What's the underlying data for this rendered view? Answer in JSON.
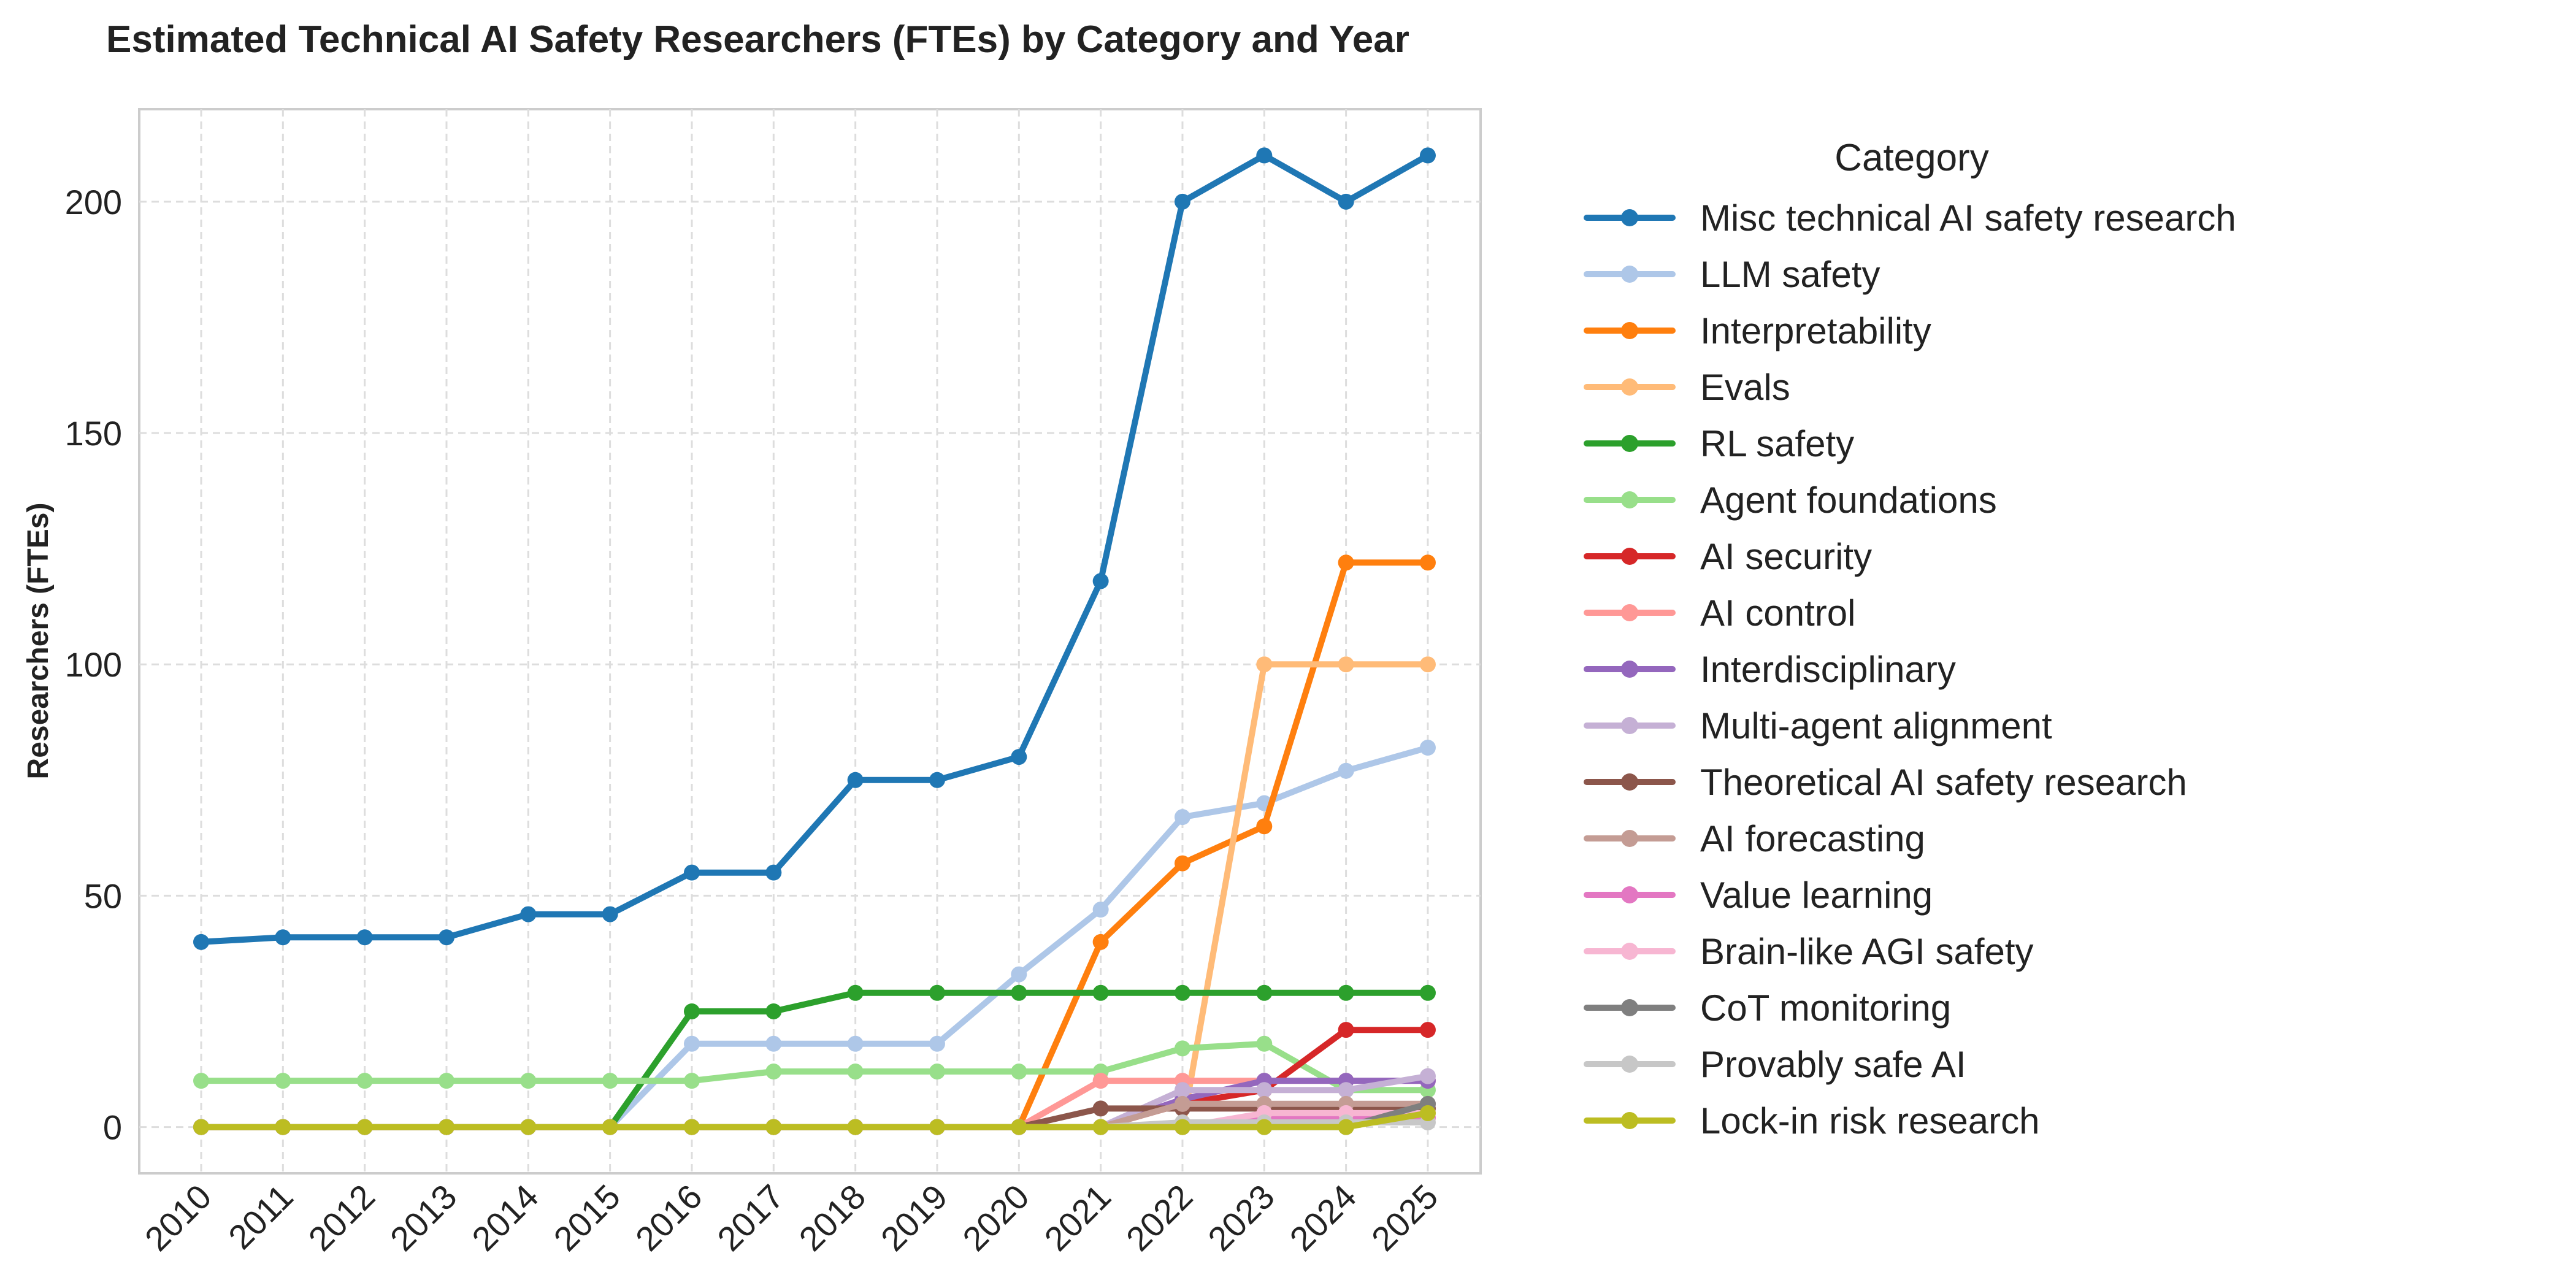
{
  "chart_data": {
    "type": "line",
    "title": "Estimated Technical AI Safety Researchers (FTEs) by Category and Year",
    "xlabel": "",
    "ylabel": "Researchers (FTEs)",
    "ylim": [
      -10,
      220
    ],
    "yticks": [
      0,
      50,
      100,
      150,
      200
    ],
    "grid": true,
    "legend_title": "Category",
    "legend_position": "outside-right",
    "x": [
      2010,
      2011,
      2012,
      2013,
      2014,
      2015,
      2016,
      2017,
      2018,
      2019,
      2020,
      2021,
      2022,
      2023,
      2024,
      2025
    ],
    "x_tick_labels": [
      "2010",
      "2011",
      "2012",
      "2013",
      "2014",
      "2015",
      "2016",
      "2017",
      "2018",
      "2019",
      "2020",
      "2021",
      "2022",
      "2023",
      "2024",
      "2025"
    ],
    "series": [
      {
        "name": "Misc technical AI safety research",
        "color": "#1f77b4",
        "values": [
          40,
          41,
          41,
          41,
          46,
          46,
          55,
          55,
          75,
          75,
          80,
          118,
          200,
          210,
          200,
          210
        ]
      },
      {
        "name": "LLM safety",
        "color": "#aec7e8",
        "values": [
          0,
          0,
          0,
          0,
          0,
          0,
          18,
          18,
          18,
          18,
          33,
          47,
          67,
          70,
          77,
          82
        ]
      },
      {
        "name": "Interpretability",
        "color": "#ff7f0e",
        "values": [
          0,
          0,
          0,
          0,
          0,
          0,
          0,
          0,
          0,
          0,
          0,
          40,
          57,
          65,
          122,
          122
        ]
      },
      {
        "name": "Evals",
        "color": "#ffbb78",
        "values": [
          0,
          0,
          0,
          0,
          0,
          0,
          0,
          0,
          0,
          0,
          0,
          0,
          0,
          100,
          100,
          100
        ]
      },
      {
        "name": "RL safety",
        "color": "#2ca02c",
        "values": [
          0,
          0,
          0,
          0,
          0,
          0,
          25,
          25,
          29,
          29,
          29,
          29,
          29,
          29,
          29,
          29
        ]
      },
      {
        "name": "Agent foundations",
        "color": "#98df8a",
        "values": [
          10,
          10,
          10,
          10,
          10,
          10,
          10,
          12,
          12,
          12,
          12,
          12,
          17,
          18,
          8,
          8
        ]
      },
      {
        "name": "AI security",
        "color": "#d62728",
        "values": [
          0,
          0,
          0,
          0,
          0,
          0,
          0,
          0,
          0,
          0,
          0,
          0,
          5,
          8,
          21,
          21
        ]
      },
      {
        "name": "AI control",
        "color": "#ff9896",
        "values": [
          0,
          0,
          0,
          0,
          0,
          0,
          0,
          0,
          0,
          0,
          0,
          10,
          10,
          10,
          10,
          10
        ]
      },
      {
        "name": "Interdisciplinary",
        "color": "#9467bd",
        "values": [
          0,
          0,
          0,
          0,
          0,
          0,
          0,
          0,
          0,
          0,
          0,
          0,
          6,
          10,
          10,
          10
        ]
      },
      {
        "name": "Multi-agent alignment",
        "color": "#c5b0d5",
        "values": [
          0,
          0,
          0,
          0,
          0,
          0,
          0,
          0,
          0,
          0,
          0,
          0,
          8,
          8,
          8,
          11
        ]
      },
      {
        "name": "Theoretical AI safety research",
        "color": "#8c564b",
        "values": [
          0,
          0,
          0,
          0,
          0,
          0,
          0,
          0,
          0,
          0,
          0,
          4,
          4,
          4,
          4,
          4
        ]
      },
      {
        "name": "AI forecasting",
        "color": "#c49c94",
        "values": [
          0,
          0,
          0,
          0,
          0,
          0,
          0,
          0,
          0,
          0,
          0,
          0,
          5,
          5,
          5,
          5
        ]
      },
      {
        "name": "Value learning",
        "color": "#e377c2",
        "values": [
          0,
          0,
          0,
          0,
          0,
          0,
          0,
          0,
          0,
          0,
          0,
          0,
          0,
          2,
          2,
          2
        ]
      },
      {
        "name": "Brain-like AGI safety",
        "color": "#f7b6d2",
        "values": [
          0,
          0,
          0,
          0,
          0,
          0,
          0,
          0,
          0,
          0,
          0,
          0,
          0,
          3,
          3,
          3
        ]
      },
      {
        "name": "CoT monitoring",
        "color": "#7f7f7f",
        "values": [
          0,
          0,
          0,
          0,
          0,
          0,
          0,
          0,
          0,
          0,
          0,
          0,
          0,
          0,
          0,
          5
        ]
      },
      {
        "name": "Provably safe AI",
        "color": "#c7c7c7",
        "values": [
          0,
          0,
          0,
          0,
          0,
          0,
          0,
          0,
          0,
          0,
          0,
          0,
          1,
          1,
          1,
          1
        ]
      },
      {
        "name": "Lock-in risk research",
        "color": "#bcbd22",
        "values": [
          0,
          0,
          0,
          0,
          0,
          0,
          0,
          0,
          0,
          0,
          0,
          0,
          0,
          0,
          0,
          3
        ]
      }
    ]
  }
}
